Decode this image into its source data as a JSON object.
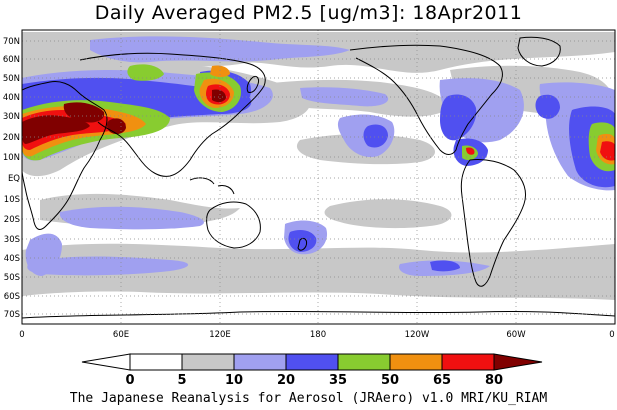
{
  "title": "Daily Averaged PM2.5 [ug/m3]: 18Apr2011",
  "credit": "The Japanese Reanalysis for Aerosol (JRAero) v1.0 MRI/KU_RIAM",
  "lat_labels": [
    "70N",
    "60N",
    "50N",
    "40N",
    "30N",
    "20N",
    "10N",
    "EQ",
    "10S",
    "20S",
    "30S",
    "40S",
    "50S",
    "60S",
    "70S"
  ],
  "lon_labels": [
    "0",
    "60E",
    "120E",
    "180",
    "120W",
    "60W",
    "0"
  ],
  "colorbar": {
    "ticks": [
      "0",
      "5",
      "10",
      "20",
      "35",
      "50",
      "65",
      "80"
    ],
    "colors": [
      "#ffffff",
      "#c8c8c8",
      "#a0a0f0",
      "#5050f0",
      "#88cc30",
      "#f09010",
      "#f01010",
      "#800000"
    ]
  },
  "colors": {
    "ocean": "#ffffff",
    "gray": "#c8c8c8",
    "light_blue": "#a0a0f0",
    "blue": "#5050f0",
    "green": "#88cc30",
    "orange": "#f09010",
    "red": "#f01010",
    "dark_red": "#800000",
    "coast": "#000000"
  }
}
